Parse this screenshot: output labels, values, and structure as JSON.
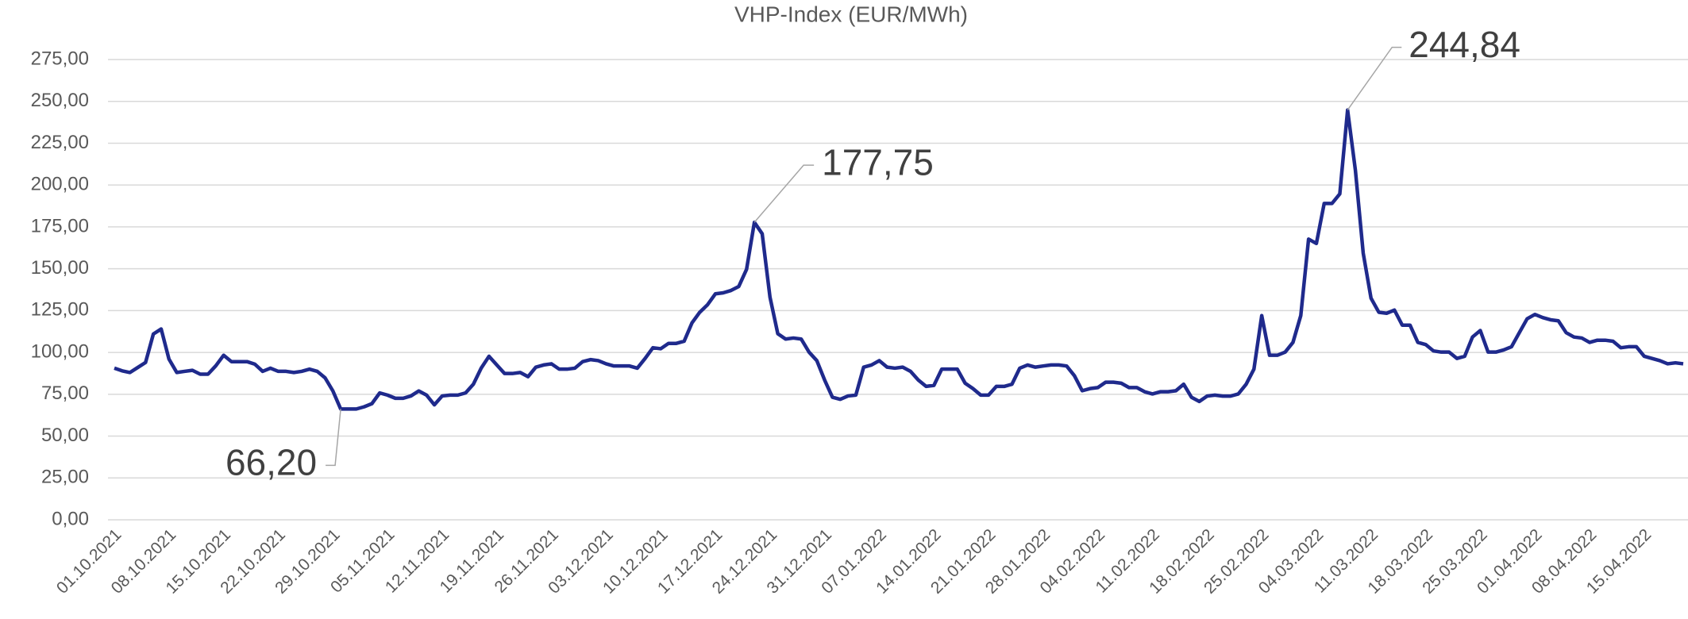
{
  "chart_data": {
    "type": "line",
    "title": "VHP-Index (EUR/MWh)",
    "categories": [
      "01.10.2021",
      null,
      null,
      null,
      null,
      null,
      null,
      "08.10.2021",
      null,
      null,
      null,
      null,
      null,
      null,
      "15.10.2021",
      null,
      null,
      null,
      null,
      null,
      null,
      "22.10.2021",
      null,
      null,
      null,
      null,
      null,
      null,
      "29.10.2021",
      null,
      null,
      null,
      null,
      null,
      null,
      "05.11.2021",
      null,
      null,
      null,
      null,
      null,
      null,
      "12.11.2021",
      null,
      null,
      null,
      null,
      null,
      null,
      "19.11.2021",
      null,
      null,
      null,
      null,
      null,
      null,
      "26.11.2021",
      null,
      null,
      null,
      null,
      null,
      null,
      "03.12.2021",
      null,
      null,
      null,
      null,
      null,
      null,
      "10.12.2021",
      null,
      null,
      null,
      null,
      null,
      null,
      "17.12.2021",
      null,
      null,
      null,
      null,
      null,
      null,
      "24.12.2021",
      null,
      null,
      null,
      null,
      null,
      null,
      "31.12.2021",
      null,
      null,
      null,
      null,
      null,
      null,
      "07.01.2022",
      null,
      null,
      null,
      null,
      null,
      null,
      "14.01.2022",
      null,
      null,
      null,
      null,
      null,
      null,
      "21.01.2022",
      null,
      null,
      null,
      null,
      null,
      null,
      "28.01.2022",
      null,
      null,
      null,
      null,
      null,
      null,
      "04.02.2022",
      null,
      null,
      null,
      null,
      null,
      null,
      "11.02.2022",
      null,
      null,
      null,
      null,
      null,
      null,
      "18.02.2022",
      null,
      null,
      null,
      null,
      null,
      null,
      "25.02.2022",
      null,
      null,
      null,
      null,
      null,
      null,
      "04.03.2022",
      null,
      null,
      null,
      null,
      null,
      null,
      "11.03.2022",
      null,
      null,
      null,
      null,
      null,
      null,
      "18.03.2022",
      null,
      null,
      null,
      null,
      null,
      null,
      "25.03.2022",
      null,
      null,
      null,
      null,
      null,
      null,
      "01.04.2022",
      null,
      null,
      null,
      null,
      null,
      null,
      "08.04.2022",
      null,
      null,
      null,
      null,
      null,
      null,
      "15.04.2022",
      null,
      null,
      null,
      null,
      null
    ],
    "values": [
      90.6,
      89,
      88,
      91,
      94,
      111,
      114,
      96,
      88,
      88.7,
      89.3,
      87,
      87,
      92,
      98.3,
      94.5,
      94.5,
      94.5,
      93,
      88.7,
      90.6,
      88.7,
      88.7,
      88,
      88.7,
      90,
      88.7,
      84.8,
      77,
      66.2,
      66.2,
      66.2,
      67.5,
      69.4,
      75.8,
      74.5,
      72.6,
      72.6,
      74,
      77,
      74.5,
      68.7,
      74,
      74.5,
      74.5,
      75.8,
      81,
      90.6,
      97.7,
      92.5,
      87.4,
      87.4,
      88,
      85.5,
      91.2,
      92.5,
      93.2,
      90,
      90,
      90.6,
      94.5,
      95.7,
      95.1,
      93.2,
      91.9,
      91.9,
      91.9,
      90.6,
      96.4,
      102.8,
      102.2,
      105.4,
      105.4,
      106.7,
      117.6,
      124,
      128.5,
      135,
      135.6,
      137,
      139.4,
      149.7,
      177.75,
      170.9,
      133,
      111.2,
      108,
      108.6,
      108,
      100.2,
      95.1,
      83.5,
      73.2,
      72,
      74,
      74.5,
      91.2,
      92.5,
      95.1,
      91.2,
      90.6,
      91.2,
      88.7,
      83.5,
      79.7,
      80.3,
      90,
      90,
      90,
      81.6,
      78.4,
      74.5,
      74.5,
      79.7,
      79.7,
      81,
      90.6,
      92.5,
      91.2,
      91.9,
      92.5,
      92.5,
      91.9,
      86.1,
      77.1,
      78.4,
      79,
      82.2,
      82.2,
      81.6,
      79,
      79,
      76.5,
      75.2,
      76.5,
      76.5,
      77.1,
      81,
      73.2,
      70.7,
      73.9,
      74.5,
      73.9,
      73.9,
      75.2,
      81,
      90,
      122,
      98.3,
      98.3,
      100.2,
      106,
      122,
      167.7,
      165.1,
      189,
      189,
      194.7,
      244.84,
      208.8,
      159.3,
      132.4,
      124,
      123.4,
      125.3,
      116.3,
      116.3,
      106,
      104.7,
      100.9,
      100.2,
      100.2,
      96.4,
      97.7,
      109.2,
      113.1,
      100.2,
      100.2,
      101.5,
      103.4,
      111.8,
      120.1,
      122.7,
      120.8,
      119.5,
      118.9,
      111.8,
      109.2,
      108.6,
      106,
      107.3,
      107.3,
      106.7,
      102.8,
      103.4,
      103.4,
      97.7,
      96.4,
      95.1,
      93.2,
      93.8,
      93.2
    ],
    "value_labels": [
      null,
      null,
      null,
      null,
      null,
      null,
      null,
      null,
      null,
      null,
      null,
      null,
      null,
      null,
      null,
      null,
      null,
      null,
      null,
      null,
      null,
      null,
      null,
      null,
      null,
      null,
      null,
      null,
      null,
      "66,20",
      null,
      null,
      null,
      null,
      null,
      null,
      null,
      null,
      null,
      null,
      null,
      null,
      null,
      null,
      null,
      null,
      null,
      null,
      null,
      null,
      null,
      null,
      null,
      null,
      null,
      null,
      null,
      null,
      null,
      null,
      null,
      null,
      null,
      null,
      null,
      null,
      null,
      null,
      null,
      null,
      null,
      null,
      null,
      null,
      null,
      null,
      null,
      null,
      null,
      null,
      null,
      null,
      "177,75",
      null,
      null,
      null,
      null,
      null,
      null,
      null,
      null,
      null,
      null,
      null,
      null,
      null,
      null,
      null,
      null,
      null,
      null,
      null,
      null,
      null,
      null,
      null,
      null,
      null,
      null,
      null,
      null,
      null,
      null,
      null,
      null,
      null,
      null,
      null,
      null,
      null,
      null,
      null,
      null,
      null,
      null,
      null,
      null,
      null,
      null,
      null,
      null,
      null,
      null,
      null,
      null,
      null,
      null,
      null,
      null,
      null,
      null,
      null,
      null,
      null,
      null,
      null,
      null,
      null,
      null,
      null,
      null,
      null,
      null,
      null,
      null,
      null,
      null,
      null,
      "244,84",
      null,
      null,
      null,
      null,
      null,
      null,
      null,
      null,
      null,
      null,
      null,
      null,
      null,
      null,
      null,
      null,
      null,
      null,
      null,
      null,
      null,
      null,
      null,
      null,
      null,
      null,
      null,
      null,
      null,
      null,
      null,
      null,
      null,
      null,
      null,
      null,
      null,
      null,
      null,
      null,
      null,
      null,
      null
    ],
    "color": "#1f2a8c",
    "ylim": [
      0,
      275
    ],
    "yticks": [
      {
        "value": 0,
        "label": "0,00"
      },
      {
        "value": 25,
        "label": "25,00"
      },
      {
        "value": 50,
        "label": "50,00"
      },
      {
        "value": 75,
        "label": "75,00"
      },
      {
        "value": 100,
        "label": "100,00"
      },
      {
        "value": 125,
        "label": "125,00"
      },
      {
        "value": 150,
        "label": "150,00"
      },
      {
        "value": 175,
        "label": "175,00"
      },
      {
        "value": 200,
        "label": "200,00"
      },
      {
        "value": 225,
        "label": "225,00"
      },
      {
        "value": 250,
        "label": "250,00"
      },
      {
        "value": 275,
        "label": "275,00"
      }
    ],
    "grid": true
  }
}
